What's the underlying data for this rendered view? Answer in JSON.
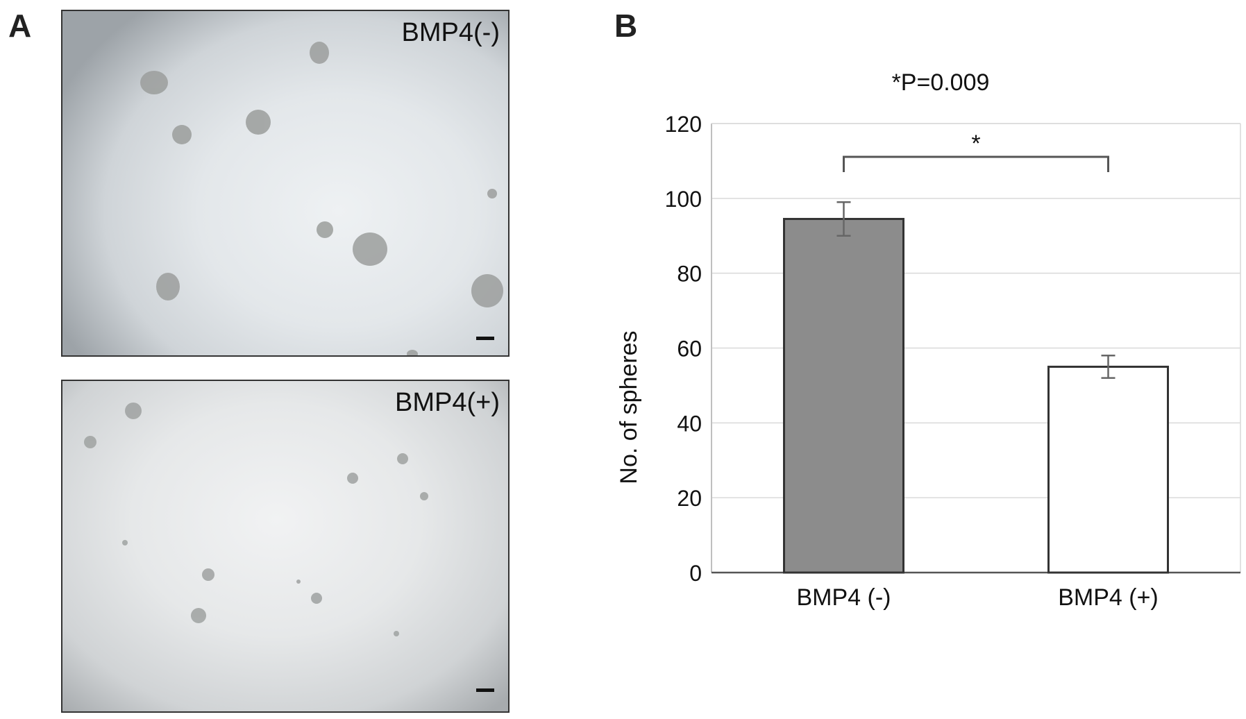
{
  "panels": {
    "a_label": "A",
    "b_label": "B"
  },
  "micrographs": [
    {
      "label": "BMP4(-)"
    },
    {
      "label": "BMP4(+)"
    }
  ],
  "chart_data": {
    "type": "bar",
    "annotation": "*P=0.009",
    "significance_marker": "*",
    "categories": [
      "BMP4 (-)",
      "BMP4 (+)"
    ],
    "values": [
      94.5,
      55
    ],
    "error": [
      4.5,
      3
    ],
    "ylabel": "No. of spheres",
    "ylim": [
      0,
      120
    ],
    "yticks": [
      0,
      20,
      40,
      60,
      80,
      100,
      120
    ],
    "grid": true,
    "colors": [
      "#8c8c8c",
      "#ffffff"
    ]
  }
}
